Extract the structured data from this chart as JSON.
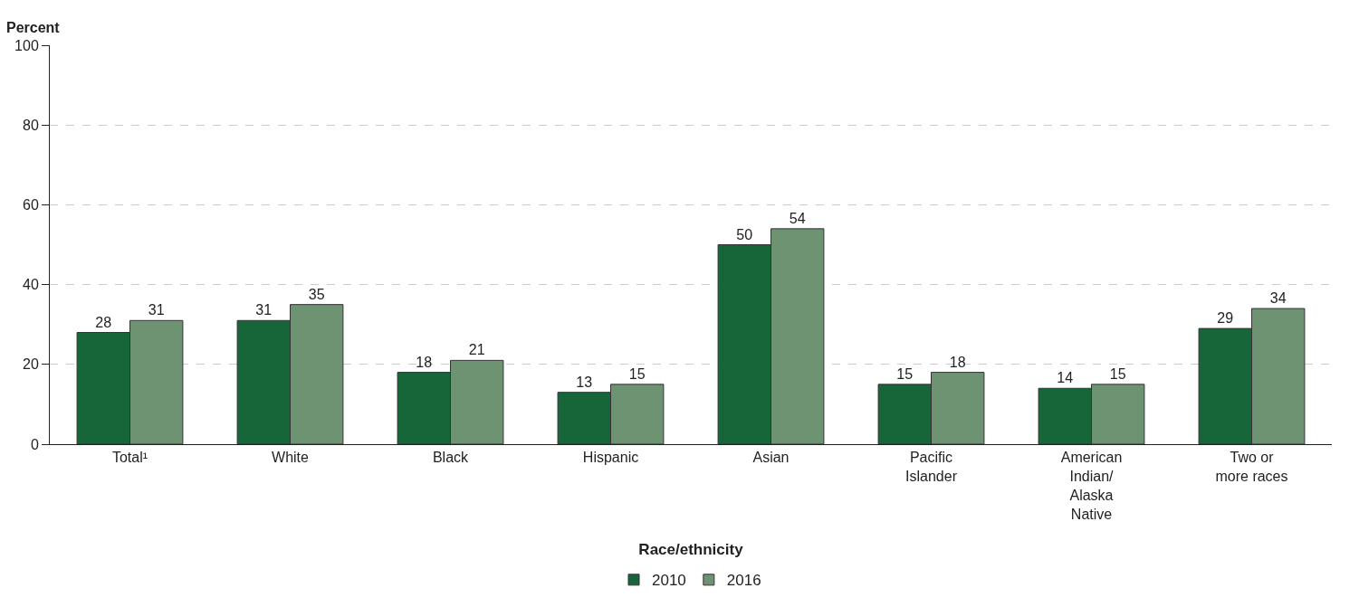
{
  "chart_data": {
    "type": "bar",
    "xlabel": "Race/ethnicity",
    "ylabel": "Percent",
    "categories": [
      "Total¹",
      "White",
      "Black",
      "Hispanic",
      "Asian",
      "Pacific Islander",
      "American Indian/Alaska Native",
      "Two or more races"
    ],
    "series": [
      {
        "name": "2010",
        "color": "#16663a",
        "values": [
          28,
          31,
          18,
          13,
          50,
          15,
          14,
          29
        ]
      },
      {
        "name": "2016",
        "color": "#6e9373",
        "values": [
          31,
          35,
          21,
          15,
          54,
          18,
          15,
          34
        ]
      }
    ],
    "ylim": [
      0,
      100
    ],
    "yticks": [
      0,
      20,
      40,
      60,
      80,
      100
    ],
    "grid": "y",
    "legend": "bottom",
    "data_labels": true
  }
}
